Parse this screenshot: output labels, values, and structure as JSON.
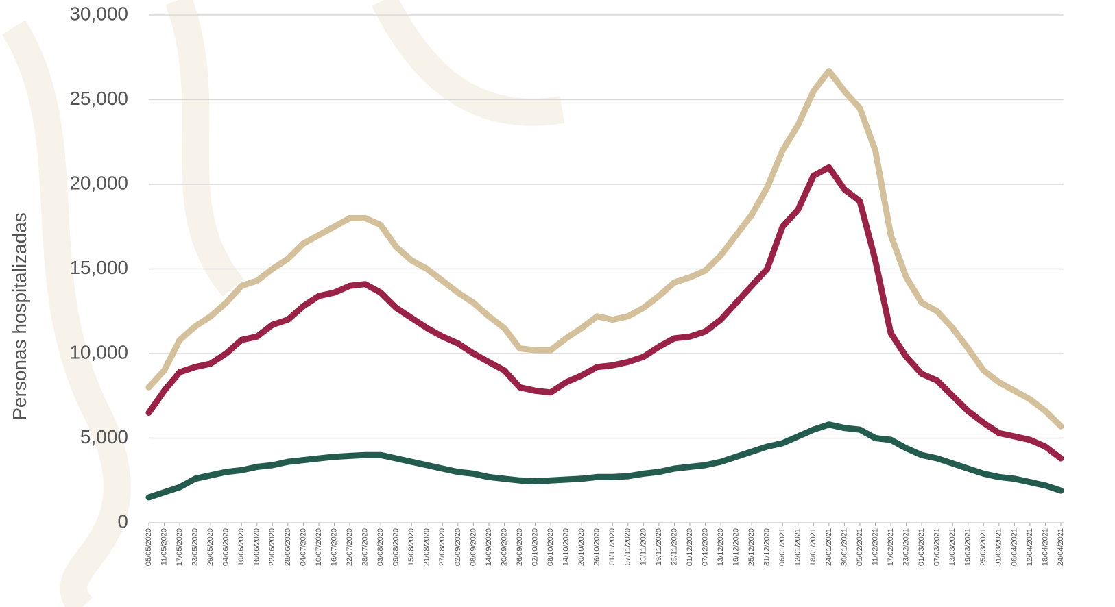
{
  "chart_data": {
    "type": "line",
    "y_label": "Personas hospitalizadas",
    "categories": [
      "05/05/2020",
      "11/05/2020",
      "17/05/2020",
      "23/05/2020",
      "29/05/2020",
      "04/06/2020",
      "10/06/2020",
      "16/06/2020",
      "22/06/2020",
      "28/06/2020",
      "04/07/2020",
      "10/07/2020",
      "16/07/2020",
      "22/07/2020",
      "28/07/2020",
      "03/08/2020",
      "09/08/2020",
      "15/08/2020",
      "21/08/2020",
      "27/08/2020",
      "02/09/2020",
      "08/09/2020",
      "14/09/2020",
      "20/09/2020",
      "26/09/2020",
      "02/10/2020",
      "08/10/2020",
      "14/10/2020",
      "20/10/2020",
      "26/10/2020",
      "01/11/2020",
      "07/11/2020",
      "13/11/2020",
      "19/11/2020",
      "25/11/2020",
      "01/12/2020",
      "07/12/2020",
      "13/12/2020",
      "19/12/2020",
      "25/12/2020",
      "31/12/2020",
      "06/01/2021",
      "12/01/2021",
      "18/01/2021",
      "24/01/2021",
      "30/01/2021",
      "05/02/2021",
      "11/02/2021",
      "17/02/2021",
      "23/02/2021",
      "01/03/2021",
      "07/03/2021",
      "13/03/2021",
      "19/03/2021",
      "25/03/2021",
      "31/03/2021",
      "06/04/2021",
      "12/04/2021",
      "18/04/2021",
      "24/04/2021"
    ],
    "series": [
      {
        "color": "#d4c19c",
        "values": [
          8000,
          9000,
          10800,
          11600,
          12200,
          13000,
          14000,
          14300,
          15000,
          15600,
          16500,
          17000,
          17500,
          18000,
          18000,
          17600,
          16300,
          15500,
          15000,
          14300,
          13600,
          13000,
          12200,
          11500,
          10300,
          10200,
          10200,
          10900,
          11500,
          12200,
          12000,
          12200,
          12700,
          13400,
          14200,
          14500,
          14900,
          15800,
          17000,
          18200,
          19800,
          22000,
          23500,
          25500,
          26700,
          25500,
          24500,
          22000,
          17000,
          14500,
          13000,
          12500,
          11500,
          10300,
          9000,
          8300,
          7800,
          7300,
          6600,
          5700
        ]
      },
      {
        "color": "#9b2247",
        "values": [
          6500,
          7800,
          8900,
          9200,
          9400,
          10000,
          10800,
          11000,
          11700,
          12000,
          12800,
          13400,
          13600,
          14000,
          14100,
          13600,
          12700,
          12100,
          11500,
          11000,
          10600,
          10000,
          9500,
          9000,
          8000,
          7800,
          7700,
          8300,
          8700,
          9200,
          9300,
          9500,
          9800,
          10400,
          10900,
          11000,
          11300,
          12000,
          13000,
          14000,
          15000,
          17500,
          18500,
          20500,
          21000,
          19700,
          19000,
          15500,
          11200,
          9800,
          8800,
          8400,
          7500,
          6600,
          5900,
          5300,
          5100,
          4900,
          4500,
          3800
        ]
      },
      {
        "color": "#235b4e",
        "values": [
          1500,
          1800,
          2100,
          2600,
          2800,
          3000,
          3100,
          3300,
          3400,
          3600,
          3700,
          3800,
          3900,
          3950,
          4000,
          4000,
          3800,
          3600,
          3400,
          3200,
          3000,
          2900,
          2700,
          2600,
          2500,
          2450,
          2500,
          2550,
          2600,
          2700,
          2700,
          2750,
          2900,
          3000,
          3200,
          3300,
          3400,
          3600,
          3900,
          4200,
          4500,
          4700,
          5100,
          5500,
          5800,
          5600,
          5500,
          5000,
          4900,
          4400,
          4000,
          3800,
          3500,
          3200,
          2900,
          2700,
          2600,
          2400,
          2200,
          1900
        ]
      }
    ],
    "ylim": [
      0,
      30000
    ],
    "yticks": [
      0,
      {
        "value": 5000,
        "label": "5,000"
      },
      {
        "value": 10000,
        "label": "10,000"
      },
      {
        "value": 15000,
        "label": "15,000"
      },
      {
        "value": 20000,
        "label": "20,000"
      },
      {
        "value": 25000,
        "label": "25,000"
      },
      {
        "value": 30000,
        "label": "30,000"
      }
    ],
    "grid": true
  }
}
